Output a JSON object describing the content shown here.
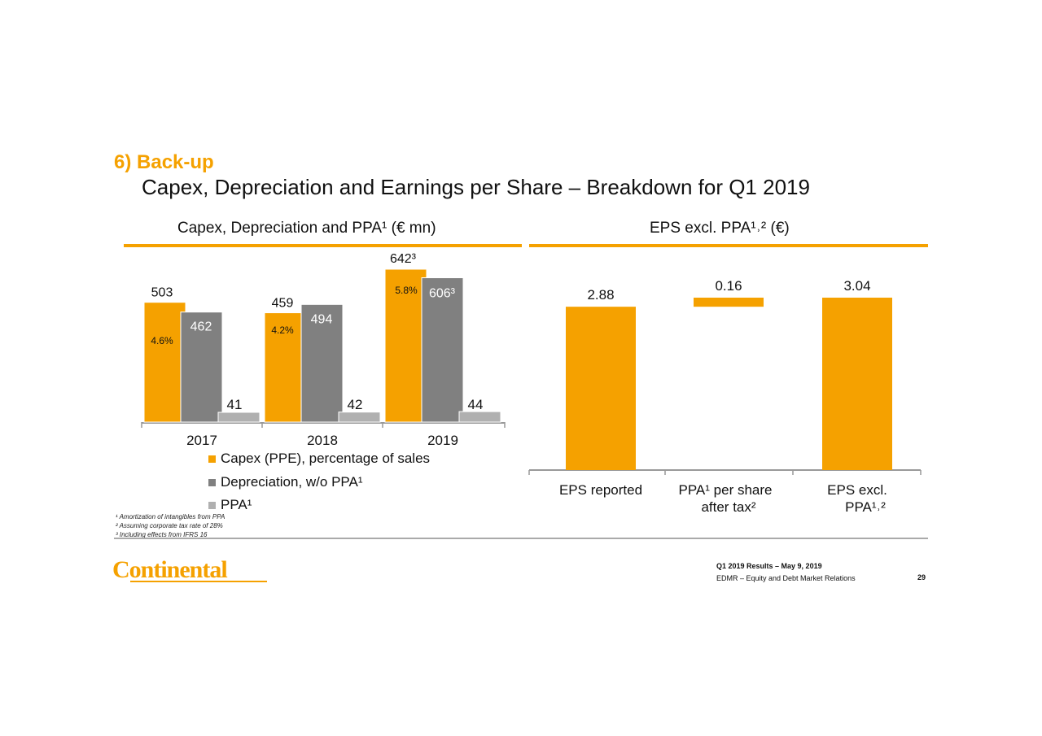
{
  "section": "6) Back-up",
  "title": "Capex, Depreciation and Earnings per Share – Breakdown for Q1 2019",
  "colors": {
    "accent": "#f5a100",
    "depreciation": "#808080",
    "ppa": "#b0b0b0"
  },
  "chart_data": [
    {
      "type": "bar",
      "title": "Capex, Depreciation and PPA¹ (€ mn)",
      "categories": [
        "2017",
        "2018",
        "2019"
      ],
      "series": [
        {
          "name": "Capex (PPE), percentage of sales",
          "values": [
            503,
            459,
            642
          ],
          "value_labels": [
            "503",
            "459",
            "642³"
          ],
          "pct_labels": [
            "4.6%",
            "4.2%",
            "5.8%"
          ]
        },
        {
          "name": "Depreciation, w/o PPA¹",
          "values": [
            462,
            494,
            606
          ],
          "value_labels": [
            "462",
            "494",
            "606³"
          ]
        },
        {
          "name": "PPA¹",
          "values": [
            41,
            42,
            44
          ],
          "value_labels": [
            "41",
            "42",
            "44"
          ]
        }
      ],
      "legend": "bottom"
    },
    {
      "type": "bar",
      "subtype": "waterfall",
      "title": "EPS excl. PPA¹˒² (€)",
      "categories": [
        "EPS reported",
        "PPA¹ per share after tax²",
        "EPS excl. PPA¹˒²"
      ],
      "values": [
        2.88,
        0.16,
        3.04
      ],
      "value_labels": [
        "2.88",
        "0.16",
        "3.04"
      ]
    }
  ],
  "footnotes": [
    "¹ Amortization of intangibles from PPA",
    "² Assuming corporate tax rate of 28%",
    "³ Including effects from IFRS 16"
  ],
  "footer": {
    "line1": "Q1 2019 Results – May 9, 2019",
    "line2": "EDMR – Equity and Debt Market Relations",
    "page": "29"
  },
  "logo": "Continental"
}
